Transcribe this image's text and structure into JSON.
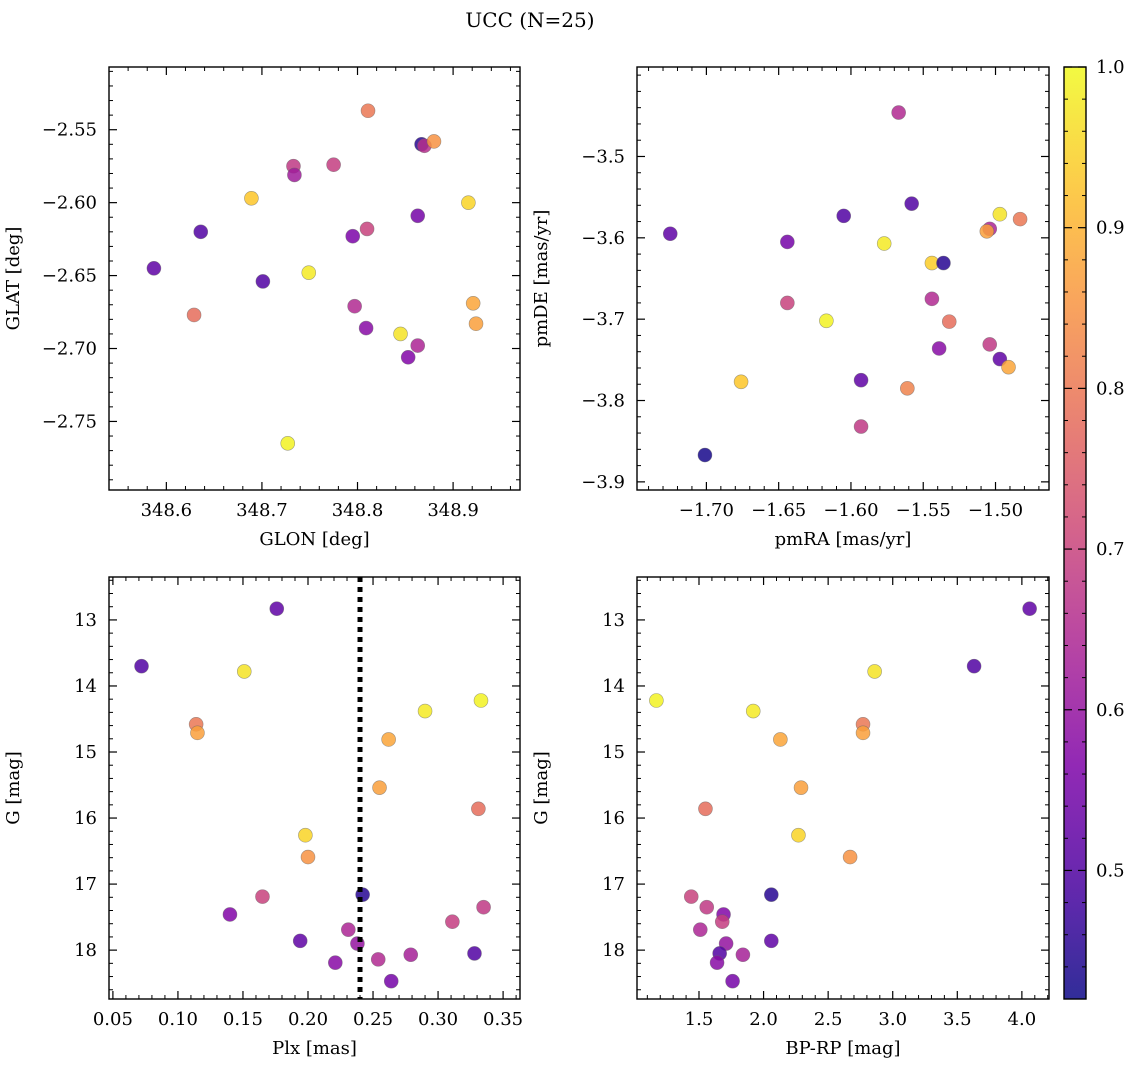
{
  "figure": {
    "title": "UCC (N=25)"
  },
  "chart_data": [
    {
      "type": "scatter",
      "xlabel": "GLON [deg]",
      "ylabel": "GLAT [deg]",
      "xlim": [
        348.54,
        348.97
      ],
      "ylim": [
        -2.797,
        -2.507
      ],
      "xticks": [
        348.6,
        348.7,
        348.8,
        348.9
      ],
      "xtick_labels": [
        "348.6",
        "348.7",
        "348.8",
        "348.9"
      ],
      "yticks": [
        -2.55,
        -2.6,
        -2.65,
        -2.7,
        -2.75
      ],
      "ytick_labels": [
        "−2.55",
        "−2.60",
        "−2.65",
        "−2.70",
        "−2.75"
      ],
      "points": [
        {
          "x": 348.811,
          "y": -2.537,
          "c": 0.8
        },
        {
          "x": 348.867,
          "y": -2.56,
          "c": 0.45
        },
        {
          "x": 348.87,
          "y": -2.561,
          "c": 0.66
        },
        {
          "x": 348.88,
          "y": -2.558,
          "c": 0.85
        },
        {
          "x": 348.733,
          "y": -2.575,
          "c": 0.68
        },
        {
          "x": 348.734,
          "y": -2.581,
          "c": 0.62
        },
        {
          "x": 348.775,
          "y": -2.574,
          "c": 0.69
        },
        {
          "x": 348.689,
          "y": -2.597,
          "c": 0.93
        },
        {
          "x": 348.916,
          "y": -2.6,
          "c": 0.95
        },
        {
          "x": 348.636,
          "y": -2.62,
          "c": 0.5
        },
        {
          "x": 348.863,
          "y": -2.609,
          "c": 0.55
        },
        {
          "x": 348.81,
          "y": -2.618,
          "c": 0.7
        },
        {
          "x": 348.795,
          "y": -2.623,
          "c": 0.56
        },
        {
          "x": 348.587,
          "y": -2.645,
          "c": 0.52
        },
        {
          "x": 348.749,
          "y": -2.648,
          "c": 0.98
        },
        {
          "x": 348.701,
          "y": -2.654,
          "c": 0.5
        },
        {
          "x": 348.629,
          "y": -2.677,
          "c": 0.78
        },
        {
          "x": 348.921,
          "y": -2.669,
          "c": 0.88
        },
        {
          "x": 348.924,
          "y": -2.683,
          "c": 0.87
        },
        {
          "x": 348.797,
          "y": -2.671,
          "c": 0.65
        },
        {
          "x": 348.809,
          "y": -2.686,
          "c": 0.58
        },
        {
          "x": 348.845,
          "y": -2.69,
          "c": 0.97
        },
        {
          "x": 348.863,
          "y": -2.698,
          "c": 0.64
        },
        {
          "x": 348.853,
          "y": -2.706,
          "c": 0.57
        },
        {
          "x": 348.727,
          "y": -2.765,
          "c": 0.99
        }
      ]
    },
    {
      "type": "scatter",
      "xlabel": "pmRA [mas/yr]",
      "ylabel": "pmDE [mas/yr]",
      "xlim": [
        -1.748,
        -1.463
      ],
      "ylim": [
        -3.91,
        -3.39
      ],
      "xticks": [
        -1.7,
        -1.65,
        -1.6,
        -1.55,
        -1.5
      ],
      "xtick_labels": [
        "−1.70",
        "−1.65",
        "−1.60",
        "−1.55",
        "−1.50"
      ],
      "yticks": [
        -3.5,
        -3.6,
        -3.7,
        -3.8,
        -3.9
      ],
      "ytick_labels": [
        "−3.5",
        "−3.6",
        "−3.7",
        "−3.8",
        "−3.9"
      ],
      "points": [
        {
          "x": -1.567,
          "y": -3.446,
          "c": 0.65
        },
        {
          "x": -1.558,
          "y": -3.558,
          "c": 0.5
        },
        {
          "x": -1.605,
          "y": -3.573,
          "c": 0.5
        },
        {
          "x": -1.725,
          "y": -3.595,
          "c": 0.52
        },
        {
          "x": -1.644,
          "y": -3.605,
          "c": 0.55
        },
        {
          "x": -1.577,
          "y": -3.607,
          "c": 0.98
        },
        {
          "x": -1.497,
          "y": -3.571,
          "c": 0.97
        },
        {
          "x": -1.504,
          "y": -3.589,
          "c": 0.64
        },
        {
          "x": -1.506,
          "y": -3.592,
          "c": 0.87
        },
        {
          "x": -1.483,
          "y": -3.577,
          "c": 0.8
        },
        {
          "x": -1.544,
          "y": -3.631,
          "c": 0.94
        },
        {
          "x": -1.536,
          "y": -3.631,
          "c": 0.45
        },
        {
          "x": -1.644,
          "y": -3.68,
          "c": 0.7
        },
        {
          "x": -1.544,
          "y": -3.675,
          "c": 0.65
        },
        {
          "x": -1.617,
          "y": -3.702,
          "c": 0.99
        },
        {
          "x": -1.532,
          "y": -3.703,
          "c": 0.78
        },
        {
          "x": -1.539,
          "y": -3.736,
          "c": 0.58
        },
        {
          "x": -1.504,
          "y": -3.731,
          "c": 0.68
        },
        {
          "x": -1.497,
          "y": -3.749,
          "c": 0.52
        },
        {
          "x": -1.491,
          "y": -3.759,
          "c": 0.88
        },
        {
          "x": -1.676,
          "y": -3.777,
          "c": 0.93
        },
        {
          "x": -1.593,
          "y": -3.775,
          "c": 0.52
        },
        {
          "x": -1.561,
          "y": -3.785,
          "c": 0.82
        },
        {
          "x": -1.593,
          "y": -3.832,
          "c": 0.68
        },
        {
          "x": -1.701,
          "y": -3.867,
          "c": 0.43
        }
      ]
    },
    {
      "type": "scatter",
      "xlabel": "Plx [mas]",
      "ylabel": "G [mag]",
      "xlim": [
        0.047,
        0.363
      ],
      "ylim": [
        18.74,
        12.35
      ],
      "xticks": [
        0.05,
        0.1,
        0.15,
        0.2,
        0.25,
        0.3,
        0.35
      ],
      "xtick_labels": [
        "0.05",
        "0.10",
        "0.15",
        "0.20",
        "0.25",
        "0.30",
        "0.35"
      ],
      "yticks": [
        13,
        14,
        15,
        16,
        17,
        18
      ],
      "ytick_labels": [
        "13",
        "14",
        "15",
        "16",
        "17",
        "18"
      ],
      "vline": 0.24,
      "points": [
        {
          "x": 0.176,
          "y": 12.83,
          "c": 0.52
        },
        {
          "x": 0.072,
          "y": 13.7,
          "c": 0.5
        },
        {
          "x": 0.151,
          "y": 13.78,
          "c": 0.97
        },
        {
          "x": 0.333,
          "y": 14.22,
          "c": 0.99
        },
        {
          "x": 0.29,
          "y": 14.38,
          "c": 0.98
        },
        {
          "x": 0.114,
          "y": 14.58,
          "c": 0.8
        },
        {
          "x": 0.115,
          "y": 14.71,
          "c": 0.87
        },
        {
          "x": 0.262,
          "y": 14.81,
          "c": 0.88
        },
        {
          "x": 0.255,
          "y": 15.54,
          "c": 0.87
        },
        {
          "x": 0.331,
          "y": 15.86,
          "c": 0.78
        },
        {
          "x": 0.198,
          "y": 16.26,
          "c": 0.95
        },
        {
          "x": 0.2,
          "y": 16.59,
          "c": 0.85
        },
        {
          "x": 0.165,
          "y": 17.19,
          "c": 0.7
        },
        {
          "x": 0.242,
          "y": 17.16,
          "c": 0.45
        },
        {
          "x": 0.335,
          "y": 17.35,
          "c": 0.68
        },
        {
          "x": 0.14,
          "y": 17.46,
          "c": 0.57
        },
        {
          "x": 0.311,
          "y": 17.57,
          "c": 0.69
        },
        {
          "x": 0.231,
          "y": 17.69,
          "c": 0.64
        },
        {
          "x": 0.194,
          "y": 17.86,
          "c": 0.52
        },
        {
          "x": 0.238,
          "y": 17.9,
          "c": 0.6
        },
        {
          "x": 0.328,
          "y": 18.05,
          "c": 0.5
        },
        {
          "x": 0.279,
          "y": 18.07,
          "c": 0.63
        },
        {
          "x": 0.221,
          "y": 18.19,
          "c": 0.58
        },
        {
          "x": 0.254,
          "y": 18.14,
          "c": 0.65
        },
        {
          "x": 0.264,
          "y": 18.47,
          "c": 0.55
        }
      ]
    },
    {
      "type": "scatter",
      "xlabel": "BP-RP [mag]",
      "ylabel": "G [mag]",
      "xlim": [
        1.02,
        4.21
      ],
      "ylim": [
        18.74,
        12.35
      ],
      "xticks": [
        1.5,
        2.0,
        2.5,
        3.0,
        3.5,
        4.0
      ],
      "xtick_labels": [
        "1.5",
        "2.0",
        "2.5",
        "3.0",
        "3.5",
        "4.0"
      ],
      "yticks": [
        13,
        14,
        15,
        16,
        17,
        18
      ],
      "ytick_labels": [
        "13",
        "14",
        "15",
        "16",
        "17",
        "18"
      ],
      "points": [
        {
          "x": 4.06,
          "y": 12.83,
          "c": 0.52
        },
        {
          "x": 3.63,
          "y": 13.7,
          "c": 0.5
        },
        {
          "x": 2.86,
          "y": 13.78,
          "c": 0.97
        },
        {
          "x": 1.17,
          "y": 14.22,
          "c": 0.99
        },
        {
          "x": 1.92,
          "y": 14.38,
          "c": 0.98
        },
        {
          "x": 2.77,
          "y": 14.58,
          "c": 0.8
        },
        {
          "x": 2.77,
          "y": 14.71,
          "c": 0.87
        },
        {
          "x": 2.13,
          "y": 14.81,
          "c": 0.88
        },
        {
          "x": 2.29,
          "y": 15.54,
          "c": 0.87
        },
        {
          "x": 1.55,
          "y": 15.86,
          "c": 0.78
        },
        {
          "x": 2.27,
          "y": 16.26,
          "c": 0.95
        },
        {
          "x": 2.67,
          "y": 16.59,
          "c": 0.85
        },
        {
          "x": 2.06,
          "y": 17.16,
          "c": 0.45
        },
        {
          "x": 1.44,
          "y": 17.19,
          "c": 0.7
        },
        {
          "x": 1.56,
          "y": 17.35,
          "c": 0.68
        },
        {
          "x": 1.69,
          "y": 17.46,
          "c": 0.57
        },
        {
          "x": 1.68,
          "y": 17.57,
          "c": 0.69
        },
        {
          "x": 1.51,
          "y": 17.69,
          "c": 0.64
        },
        {
          "x": 2.06,
          "y": 17.86,
          "c": 0.52
        },
        {
          "x": 1.71,
          "y": 17.9,
          "c": 0.6
        },
        {
          "x": 1.66,
          "y": 18.05,
          "c": 0.5
        },
        {
          "x": 1.84,
          "y": 18.07,
          "c": 0.63
        },
        {
          "x": 1.64,
          "y": 18.19,
          "c": 0.58
        },
        {
          "x": 1.76,
          "y": 18.47,
          "c": 0.55
        }
      ]
    }
  ],
  "colorbar": {
    "colormap": "plasma",
    "range": [
      0.42,
      1.0
    ],
    "ticks": [
      0.5,
      0.6,
      0.7,
      0.8,
      0.9,
      1.0
    ],
    "tick_labels": [
      "0.5",
      "0.6",
      "0.7",
      "0.8",
      "0.9",
      "1.0"
    ]
  },
  "style": {
    "marker_alpha": 0.85,
    "marker_edge": "#666666",
    "vline_color": "#000000"
  }
}
